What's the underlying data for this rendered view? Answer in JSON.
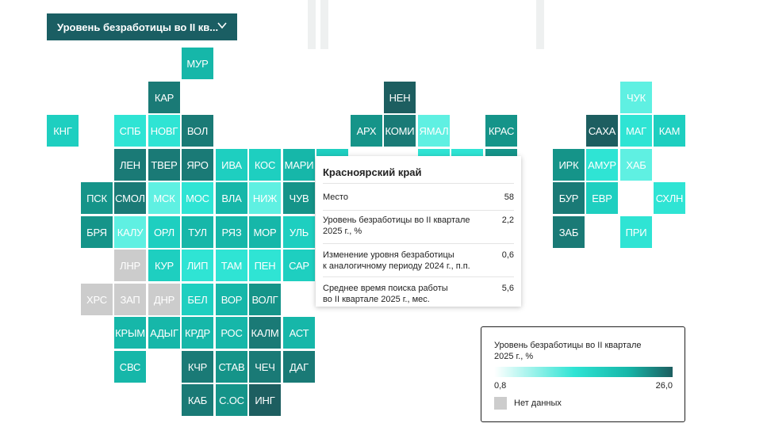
{
  "selector": {
    "label": "Уровень безработицы во II кв..."
  },
  "colors": {
    "1": "#ffffff",
    "2": "#98f2ea",
    "3": "#5ff0e2",
    "4": "#2fe4d4",
    "5": "#1ecfc0",
    "6": "#16b7a9",
    "7": "#159489",
    "8": "#1a7a76",
    "9": "#1d5e60",
    "nodata": "#cccccc"
  },
  "regions": [
    {
      "label": "МУР",
      "shade": "6",
      "col": 4,
      "row": 0
    },
    {
      "label": "КАР",
      "shade": "8",
      "col": 3,
      "row": 1
    },
    {
      "label": "НЕН",
      "shade": "9",
      "col": 10,
      "row": 1
    },
    {
      "label": "ЧУК",
      "shade": "3",
      "col": 17,
      "row": 1
    },
    {
      "label": "КНГ",
      "shade": "5",
      "col": 0,
      "row": 2
    },
    {
      "label": "СПБ",
      "shade": "4",
      "col": 2,
      "row": 2
    },
    {
      "label": "НОВГ",
      "shade": "4",
      "col": 3,
      "row": 2
    },
    {
      "label": "ВОЛ",
      "shade": "8",
      "col": 4,
      "row": 2
    },
    {
      "label": "АРХ",
      "shade": "7",
      "col": 9,
      "row": 2
    },
    {
      "label": "КОМИ",
      "shade": "8",
      "col": 10,
      "row": 2
    },
    {
      "label": "ЯМАЛ",
      "shade": "3",
      "col": 11,
      "row": 2
    },
    {
      "label": "КРАС",
      "shade": "7",
      "col": 13,
      "row": 2
    },
    {
      "label": "САХА",
      "shade": "9",
      "col": 16,
      "row": 2
    },
    {
      "label": "МАГ",
      "shade": "4",
      "col": 17,
      "row": 2
    },
    {
      "label": "КАМ",
      "shade": "5",
      "col": 18,
      "row": 2
    },
    {
      "label": "ЛЕН",
      "shade": "8",
      "col": 2,
      "row": 3
    },
    {
      "label": "ТВЕР",
      "shade": "8",
      "col": 3,
      "row": 3
    },
    {
      "label": "ЯРО",
      "shade": "8",
      "col": 4,
      "row": 3
    },
    {
      "label": "ИВА",
      "shade": "5",
      "col": 5,
      "row": 3
    },
    {
      "label": "КОС",
      "shade": "5",
      "col": 6,
      "row": 3
    },
    {
      "label": "МАРИ",
      "shade": "6",
      "col": 7,
      "row": 3
    },
    {
      "label": "",
      "shade": "5",
      "col": 8,
      "row": 3
    },
    {
      "label": "",
      "shade": "4",
      "col": 11,
      "row": 3
    },
    {
      "label": "",
      "shade": "4",
      "col": 12,
      "row": 3
    },
    {
      "label": "",
      "shade": "7",
      "col": 13,
      "row": 3
    },
    {
      "label": "ИРК",
      "shade": "7",
      "col": 15,
      "row": 3
    },
    {
      "label": "АМУР",
      "shade": "4",
      "col": 16,
      "row": 3
    },
    {
      "label": "ХАБ",
      "shade": "3",
      "col": 17,
      "row": 3
    },
    {
      "label": "ПСК",
      "shade": "7",
      "col": 1,
      "row": 4
    },
    {
      "label": "СМОЛ",
      "shade": "8",
      "col": 2,
      "row": 4
    },
    {
      "label": "МСК",
      "shade": "3",
      "col": 3,
      "row": 4
    },
    {
      "label": "МОС",
      "shade": "4",
      "col": 4,
      "row": 4
    },
    {
      "label": "ВЛА",
      "shade": "6",
      "col": 5,
      "row": 4
    },
    {
      "label": "НИЖ",
      "shade": "3",
      "col": 6,
      "row": 4
    },
    {
      "label": "ЧУВ",
      "shade": "7",
      "col": 7,
      "row": 4
    },
    {
      "label": "БУР",
      "shade": "8",
      "col": 15,
      "row": 4
    },
    {
      "label": "ЕВР",
      "shade": "5",
      "col": 16,
      "row": 4
    },
    {
      "label": "СХЛН",
      "shade": "4",
      "col": 18,
      "row": 4
    },
    {
      "label": "БРЯ",
      "shade": "7",
      "col": 1,
      "row": 5
    },
    {
      "label": "КАЛУ",
      "shade": "3",
      "col": 2,
      "row": 5
    },
    {
      "label": "ОРЛ",
      "shade": "5",
      "col": 3,
      "row": 5
    },
    {
      "label": "ТУЛ",
      "shade": "6",
      "col": 4,
      "row": 5
    },
    {
      "label": "РЯЗ",
      "shade": "6",
      "col": 5,
      "row": 5
    },
    {
      "label": "МОР",
      "shade": "6",
      "col": 6,
      "row": 5
    },
    {
      "label": "УЛЬ",
      "shade": "5",
      "col": 7,
      "row": 5
    },
    {
      "label": "ЗАБ",
      "shade": "8",
      "col": 15,
      "row": 5
    },
    {
      "label": "ПРИ",
      "shade": "4",
      "col": 17,
      "row": 5
    },
    {
      "label": "ЛНР",
      "shade": "nodata",
      "col": 2,
      "row": 6
    },
    {
      "label": "КУР",
      "shade": "5",
      "col": 3,
      "row": 6
    },
    {
      "label": "ЛИП",
      "shade": "4",
      "col": 4,
      "row": 6
    },
    {
      "label": "ТАМ",
      "shade": "4",
      "col": 5,
      "row": 6
    },
    {
      "label": "ПЕН",
      "shade": "4",
      "col": 6,
      "row": 6
    },
    {
      "label": "САР",
      "shade": "5",
      "col": 7,
      "row": 6
    },
    {
      "label": "ХРС",
      "shade": "nodata",
      "col": 1,
      "row": 7
    },
    {
      "label": "ЗАП",
      "shade": "nodata",
      "col": 2,
      "row": 7
    },
    {
      "label": "ДНР",
      "shade": "nodata",
      "col": 3,
      "row": 7
    },
    {
      "label": "БЕЛ",
      "shade": "5",
      "col": 4,
      "row": 7
    },
    {
      "label": "ВОР",
      "shade": "6",
      "col": 5,
      "row": 7
    },
    {
      "label": "ВОЛГ",
      "shade": "7",
      "col": 6,
      "row": 7
    },
    {
      "label": "КРЫМ",
      "shade": "6",
      "col": 2,
      "row": 8
    },
    {
      "label": "АДЫГ",
      "shade": "6",
      "col": 3,
      "row": 8
    },
    {
      "label": "КРДР",
      "shade": "6",
      "col": 4,
      "row": 8
    },
    {
      "label": "РОС",
      "shade": "6",
      "col": 5,
      "row": 8
    },
    {
      "label": "КАЛМ",
      "shade": "8",
      "col": 6,
      "row": 8
    },
    {
      "label": "АСТ",
      "shade": "6",
      "col": 7,
      "row": 8
    },
    {
      "label": "СВС",
      "shade": "6",
      "col": 2,
      "row": 9
    },
    {
      "label": "КЧР",
      "shade": "8",
      "col": 4,
      "row": 9
    },
    {
      "label": "СТАВ",
      "shade": "7",
      "col": 5,
      "row": 9
    },
    {
      "label": "ЧЕЧ",
      "shade": "8",
      "col": 6,
      "row": 9
    },
    {
      "label": "ДАГ",
      "shade": "8",
      "col": 7,
      "row": 9
    },
    {
      "label": "КАБ",
      "shade": "8",
      "col": 4,
      "row": 10
    },
    {
      "label": "С.ОС",
      "shade": "7",
      "col": 5,
      "row": 10
    },
    {
      "label": "ИНГ",
      "shade": "9",
      "col": 6,
      "row": 10
    }
  ],
  "tooltip": {
    "title": "Красноярский край",
    "rows": [
      {
        "label": "Место",
        "value": "58"
      },
      {
        "label": "Уровень безработицы во II квартале\n2025 г., %",
        "value": "2,2"
      },
      {
        "label": "Изменение уровня безработицы\nк аналогичному периоду 2024 г., п.п.",
        "value": "0,6"
      },
      {
        "label": "Среднее время поиска работы\nво II квартале 2025 г., мес.",
        "value": "5,6"
      }
    ]
  },
  "legend": {
    "title": "Уровень безработицы во II квартале\n2025 г., %",
    "min": "0,8",
    "max": "26,0",
    "nodata": "Нет данных"
  }
}
